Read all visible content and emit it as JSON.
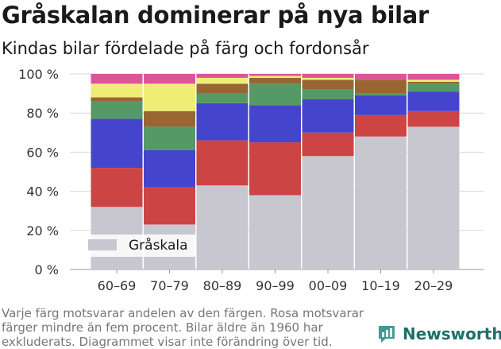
{
  "header": {
    "title": "Gråskalan dominerar på nya bilar",
    "subtitle": "Kindas bilar fördelade på färg och fordonsår"
  },
  "footer": {
    "note": "Varje färg motsvarar andelen av den färgen. Rosa motsvarar färger mindre än fem procent. Bilar äldre än 1960 har exkluderats. Diagrammet visar inte förändring över tid.",
    "brand": "Newsworthy"
  },
  "chart_data": {
    "type": "bar",
    "stacked": true,
    "categories": [
      "60–69",
      "70–79",
      "80–89",
      "90–99",
      "00–09",
      "10–19",
      "20–29"
    ],
    "yticks": [
      "0 %",
      "20 %",
      "40 %",
      "60 %",
      "80 %",
      "100 %"
    ],
    "ylim": [
      0,
      100
    ],
    "grid": true,
    "legend_position": "bottom-left",
    "series": [
      {
        "name": "Gråskala",
        "color": "#c8c7d0",
        "values": [
          32,
          23,
          43,
          38,
          58,
          68,
          73
        ]
      },
      {
        "color": "#cc4444",
        "values": [
          20,
          19,
          23,
          27,
          12,
          11,
          8
        ]
      },
      {
        "color": "#4444cc",
        "values": [
          25,
          19,
          19,
          19,
          17,
          10,
          10
        ]
      },
      {
        "color": "#559966",
        "values": [
          9,
          12,
          5,
          11,
          5,
          1,
          4
        ]
      },
      {
        "color": "#996633",
        "values": [
          2,
          8,
          5,
          3,
          5,
          7,
          1
        ]
      },
      {
        "color": "#eeee77",
        "values": [
          7,
          14,
          3,
          1,
          1,
          0,
          1
        ]
      },
      {
        "color": "#dd5599",
        "values": [
          5,
          5,
          2,
          1,
          2,
          3,
          3
        ]
      }
    ]
  }
}
